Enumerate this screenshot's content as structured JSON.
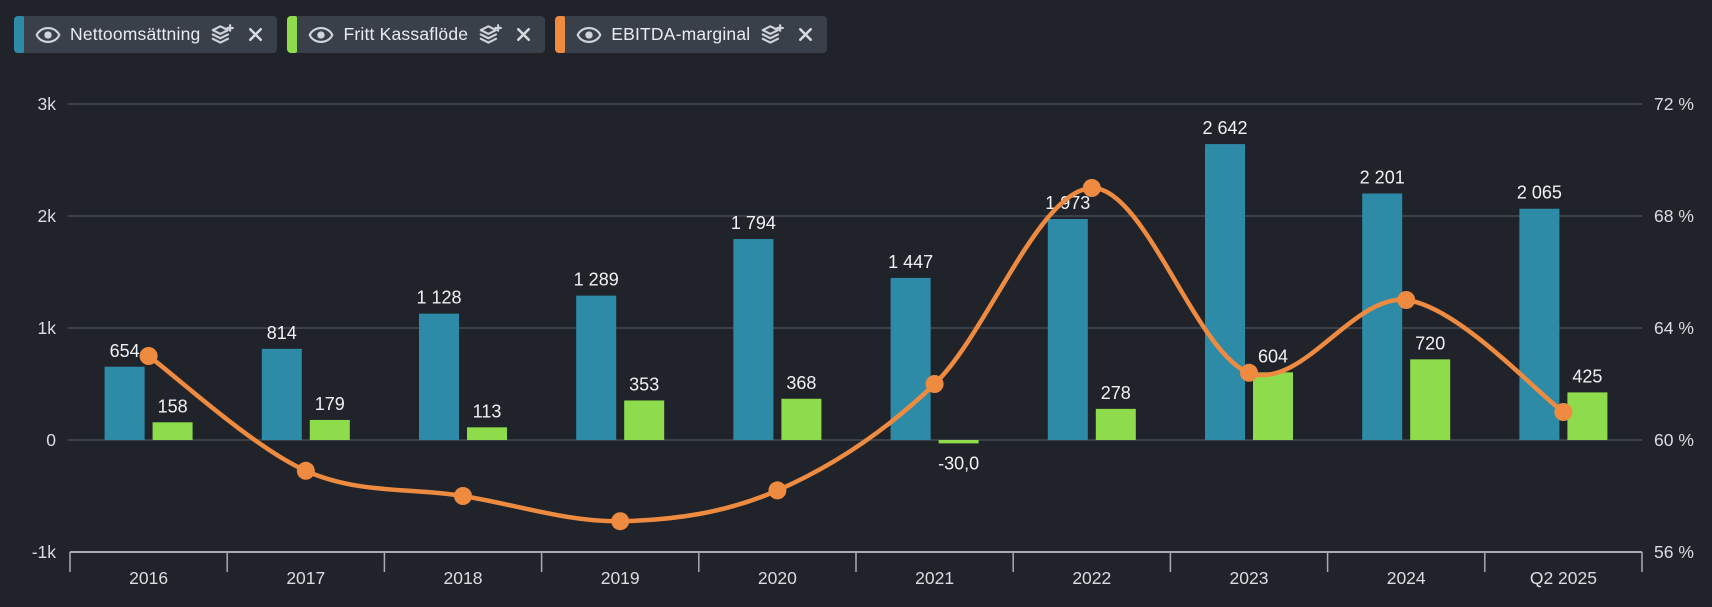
{
  "colors": {
    "background": "#20242A",
    "chip_background": "#3A404A",
    "grid": "#3A414A",
    "axis": "#A7ACB2",
    "text_value": "#EFF1F4",
    "text_axis": "#DADEE2"
  },
  "legend": [
    {
      "label": "Nettoomsättning",
      "color": "#2E8BA8",
      "icons": [
        "eye-icon",
        "layers-plus-icon",
        "close-icon"
      ]
    },
    {
      "label": "Fritt Kassaflöde",
      "color": "#8EDC4B",
      "icons": [
        "eye-icon",
        "layers-plus-icon",
        "close-icon"
      ]
    },
    {
      "label": "EBITDA-marginal",
      "color": "#EF8B41",
      "icons": [
        "eye-icon",
        "layers-plus-icon",
        "close-icon"
      ]
    }
  ],
  "chart_data": {
    "type": "bar",
    "subtype": "combo-bar-line",
    "categories": [
      "2016",
      "2017",
      "2018",
      "2019",
      "2020",
      "2021",
      "2022",
      "2023",
      "2024",
      "Q2 2025"
    ],
    "series": [
      {
        "name": "Nettoomsättning",
        "type": "bar",
        "axis": "left",
        "color": "#2E8BA8",
        "values": [
          654,
          814,
          1128,
          1289,
          1794,
          1447,
          1973,
          2642,
          2201,
          2065
        ],
        "labels": [
          "654",
          "814",
          "1 128",
          "1 289",
          "1 794",
          "1 447",
          "1 973",
          "2 642",
          "2 201",
          "2 065"
        ]
      },
      {
        "name": "Fritt Kassaflöde",
        "type": "bar",
        "axis": "left",
        "color": "#8EDC4B",
        "values": [
          158,
          179,
          113,
          353,
          368,
          -30.0,
          278,
          604,
          720,
          425
        ],
        "labels": [
          "158",
          "179",
          "113",
          "353",
          "368",
          "-30,0",
          "278",
          "604",
          "720",
          "425"
        ]
      },
      {
        "name": "EBITDA-marginal",
        "type": "line",
        "axis": "right",
        "color": "#EF8B41",
        "values": [
          63.0,
          58.9,
          58.0,
          57.1,
          58.2,
          62.0,
          69.0,
          62.4,
          65.0,
          61.0
        ]
      }
    ],
    "left_axis": {
      "tick_labels": [
        "3k",
        "2k",
        "1k",
        "0",
        "-1k"
      ],
      "tick_values": [
        3000,
        2000,
        1000,
        0,
        -1000
      ],
      "range": [
        -1000,
        3000
      ]
    },
    "right_axis": {
      "tick_labels": [
        "72 %",
        "68 %",
        "64 %",
        "60 %",
        "56 %"
      ],
      "tick_values": [
        72,
        68,
        64,
        60,
        56
      ],
      "range": [
        56,
        72
      ]
    },
    "grid": true,
    "legend_position": "top-left"
  }
}
